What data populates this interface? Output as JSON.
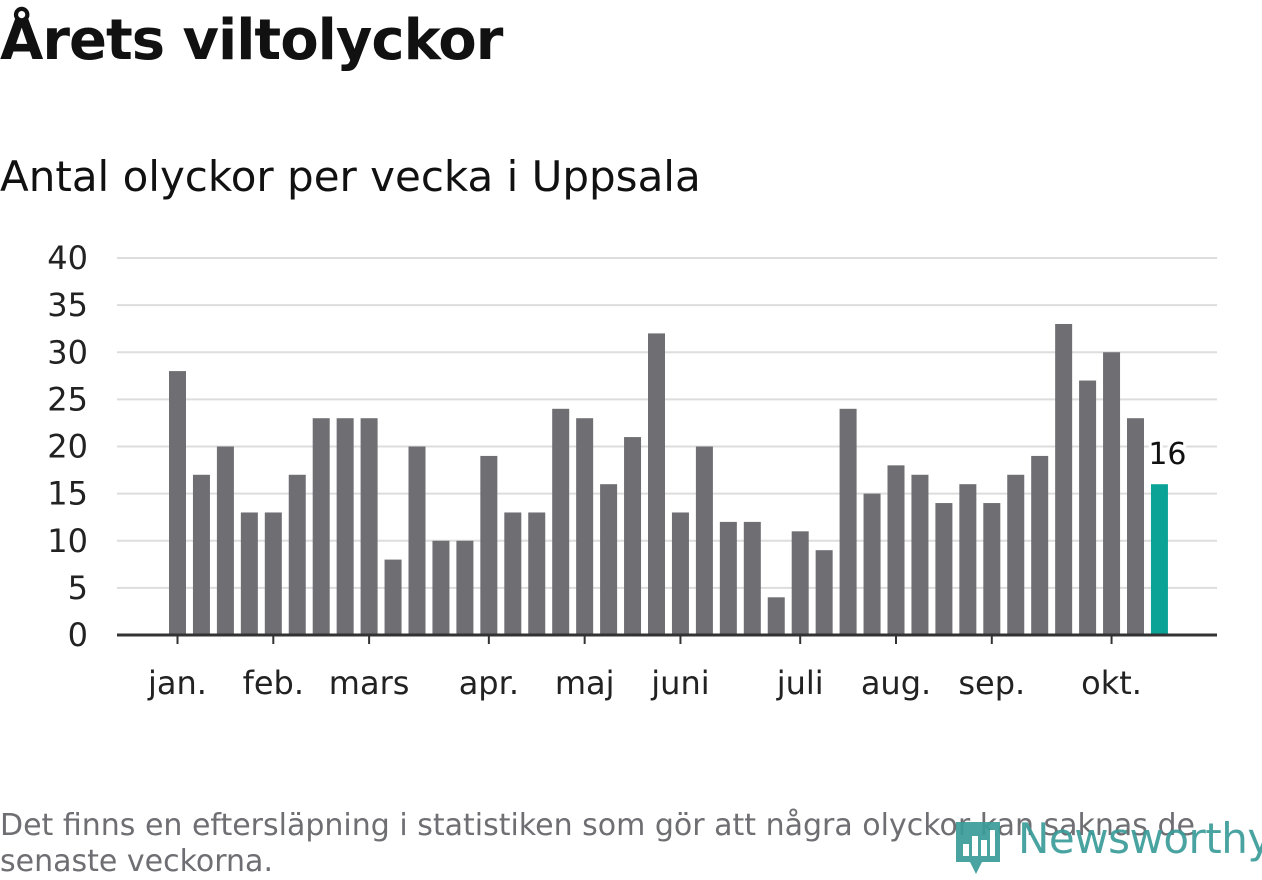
{
  "title": "Årets viltolyckor",
  "subtitle": "Antal olyckor per vecka i Uppsala",
  "footnote": "Det finns en eftersläpning i statistiken som gör att några olyckor kan saknas de senaste veckorna.",
  "brand": {
    "name": "Newsworthy",
    "color": "#3a9c99",
    "icon": "bar-chart-pin-icon"
  },
  "colors": {
    "bar": "#6e6e73",
    "highlight": "#0ca397",
    "grid": "#dddddd",
    "axis": "#333333"
  },
  "chart_data": {
    "type": "bar",
    "title": "Antal olyckor per vecka i Uppsala",
    "xlabel": "",
    "ylabel": "",
    "ylim": [
      0,
      40
    ],
    "yticks": [
      0,
      5,
      10,
      15,
      20,
      25,
      30,
      35,
      40
    ],
    "grid": true,
    "values": [
      28,
      17,
      20,
      13,
      13,
      17,
      23,
      23,
      23,
      8,
      20,
      10,
      10,
      19,
      13,
      13,
      24,
      23,
      16,
      21,
      32,
      13,
      20,
      12,
      12,
      4,
      11,
      9,
      24,
      15,
      18,
      17,
      14,
      16,
      14,
      17,
      19,
      33,
      27,
      30,
      23,
      16
    ],
    "highlight_index": 41,
    "highlight_label": "16",
    "month_labels": [
      {
        "label": "jan.",
        "bar_index": 0
      },
      {
        "label": "feb.",
        "bar_index": 4
      },
      {
        "label": "mars",
        "bar_index": 8
      },
      {
        "label": "apr.",
        "bar_index": 13
      },
      {
        "label": "maj",
        "bar_index": 17
      },
      {
        "label": "juni",
        "bar_index": 21
      },
      {
        "label": "juli",
        "bar_index": 26
      },
      {
        "label": "aug.",
        "bar_index": 30
      },
      {
        "label": "sep.",
        "bar_index": 34
      },
      {
        "label": "okt.",
        "bar_index": 39
      }
    ]
  }
}
